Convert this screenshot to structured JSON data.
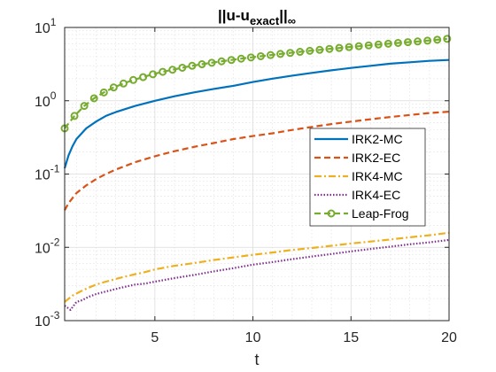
{
  "chart_data": {
    "type": "line",
    "title": {
      "prefix": "||u-u",
      "subscript": "exact",
      "suffix": "||",
      "sub2": "∞"
    },
    "xlabel": "t",
    "ylabel": "",
    "xlim": [
      0.4,
      20
    ],
    "ylim": [
      0.001,
      10
    ],
    "yscale": "log",
    "grid": true,
    "minor_grid": true,
    "legend": "center-right",
    "x_ticks": [
      5,
      10,
      15,
      20
    ],
    "x_tick_labels": [
      "5",
      "10",
      "15",
      "20"
    ],
    "y_ticks": [
      0.001,
      0.01,
      0.1,
      1,
      10
    ],
    "y_tick_labels": [
      {
        "base": "10",
        "exp": "-3"
      },
      {
        "base": "10",
        "exp": "-2"
      },
      {
        "base": "10",
        "exp": "-1"
      },
      {
        "base": "10",
        "exp": "0"
      },
      {
        "base": "10",
        "exp": "1"
      }
    ],
    "series": [
      {
        "name": "IRK2-MC",
        "color": "#0072BD",
        "style": "solid",
        "marker": "none",
        "x": [
          0.4,
          0.6,
          0.8,
          1.0,
          1.5,
          2,
          2.5,
          3,
          4,
          5,
          6,
          7,
          8,
          9,
          10,
          11,
          12,
          13,
          14,
          15,
          16,
          17,
          18,
          19,
          20
        ],
        "y": [
          0.12,
          0.18,
          0.24,
          0.3,
          0.42,
          0.52,
          0.62,
          0.7,
          0.85,
          1.0,
          1.15,
          1.3,
          1.45,
          1.6,
          1.8,
          2.0,
          2.2,
          2.4,
          2.6,
          2.8,
          3.0,
          3.2,
          3.35,
          3.5,
          3.6
        ]
      },
      {
        "name": "IRK2-EC",
        "color": "#D95319",
        "style": "dashed",
        "marker": "none",
        "x": [
          0.4,
          0.6,
          0.8,
          1.0,
          1.5,
          2,
          2.5,
          3,
          4,
          5,
          6,
          7,
          8,
          9,
          10,
          11,
          12,
          13,
          14,
          15,
          16,
          17,
          18,
          19,
          20
        ],
        "y": [
          0.032,
          0.04,
          0.047,
          0.055,
          0.07,
          0.085,
          0.1,
          0.115,
          0.145,
          0.175,
          0.205,
          0.235,
          0.265,
          0.3,
          0.33,
          0.36,
          0.4,
          0.44,
          0.48,
          0.52,
          0.56,
          0.6,
          0.64,
          0.68,
          0.71
        ]
      },
      {
        "name": "IRK4-MC",
        "color": "#EDB120",
        "style": "dashdot",
        "marker": "none",
        "x": [
          0.4,
          0.8,
          1.2,
          1.6,
          2,
          2.5,
          3,
          3.5,
          4,
          4.5,
          5,
          6,
          7,
          8,
          9,
          10,
          11,
          12,
          13,
          14,
          15,
          16,
          17,
          18,
          19,
          20
        ],
        "y": [
          0.0018,
          0.0022,
          0.0025,
          0.0028,
          0.0031,
          0.0034,
          0.0037,
          0.004,
          0.0043,
          0.0046,
          0.005,
          0.0056,
          0.0061,
          0.0067,
          0.0073,
          0.0079,
          0.0085,
          0.0092,
          0.0098,
          0.0105,
          0.0113,
          0.012,
          0.0128,
          0.0137,
          0.0146,
          0.0158
        ]
      },
      {
        "name": "IRK4-EC",
        "color": "#7E2F8E",
        "style": "dotted",
        "marker": "none",
        "x": [
          0.4,
          0.7,
          1.0,
          1.3,
          1.6,
          2,
          2.5,
          3,
          3.5,
          4,
          4.5,
          5,
          6,
          7,
          8,
          9,
          10,
          11,
          12,
          13,
          14,
          15,
          16,
          17,
          18,
          19,
          20
        ],
        "y": [
          0.0016,
          0.0014,
          0.0018,
          0.0019,
          0.0021,
          0.0023,
          0.0025,
          0.0027,
          0.0029,
          0.0031,
          0.0032,
          0.0034,
          0.0038,
          0.0042,
          0.0047,
          0.0052,
          0.0058,
          0.0063,
          0.0069,
          0.0075,
          0.0081,
          0.0088,
          0.0095,
          0.0102,
          0.011,
          0.0117,
          0.0126
        ]
      },
      {
        "name": "Leap-Frog",
        "color": "#77AC30",
        "style": "dashed",
        "marker": "circle",
        "x": [
          0.4,
          0.9,
          1.4,
          1.9,
          2.4,
          2.9,
          3.4,
          3.9,
          4.4,
          4.9,
          5.4,
          5.9,
          6.4,
          6.9,
          7.4,
          7.9,
          8.4,
          8.9,
          9.4,
          9.9,
          10.4,
          10.9,
          11.4,
          11.9,
          12.4,
          12.9,
          13.4,
          13.9,
          14.4,
          14.9,
          15.4,
          15.9,
          16.4,
          16.9,
          17.4,
          17.9,
          18.4,
          18.9,
          19.4,
          19.9
        ],
        "y": [
          0.42,
          0.62,
          0.85,
          1.08,
          1.3,
          1.52,
          1.72,
          1.92,
          2.1,
          2.3,
          2.48,
          2.65,
          2.82,
          3.0,
          3.15,
          3.3,
          3.45,
          3.6,
          3.75,
          3.9,
          4.05,
          4.2,
          4.35,
          4.5,
          4.65,
          4.8,
          4.95,
          5.1,
          5.25,
          5.4,
          5.55,
          5.7,
          5.85,
          6.0,
          6.15,
          6.3,
          6.45,
          6.6,
          6.8,
          7.0
        ]
      }
    ]
  }
}
